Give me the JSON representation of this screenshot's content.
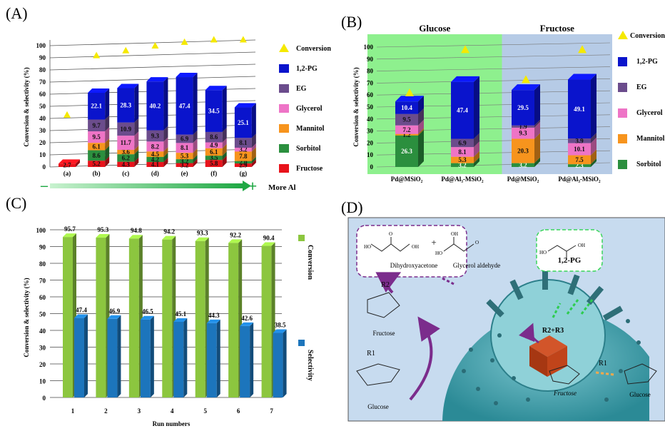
{
  "chart_data": [
    {
      "panel": "(A)",
      "type": "bar",
      "stacked": true,
      "categories": [
        "(a)",
        "(b)",
        "(c)",
        "(d)",
        "(e)",
        "(f)",
        "(g)"
      ],
      "ylabel": "Conversion & selectivity (%)",
      "ylim": [
        0,
        100
      ],
      "yticks": [
        0,
        10,
        20,
        30,
        40,
        50,
        60,
        70,
        80,
        90,
        100
      ],
      "axis_note": "More Al",
      "axis_minus": "–",
      "axis_plus": "+",
      "legend_placement": "right",
      "series": [
        {
          "name": "Fructose",
          "color": "#e8131b",
          "values": [
            2.7,
            5.2,
            4.3,
            4.1,
            3.2,
            5.8,
            2.9
          ]
        },
        {
          "name": "Sorbitol",
          "color": "#2b8f3e",
          "values": [
            0,
            8.6,
            6.2,
            4.2,
            3.2,
            3.5,
            2.0
          ]
        },
        {
          "name": "Mannitol",
          "color": "#f7941d",
          "values": [
            0,
            6.1,
            3.6,
            4.5,
            5.3,
            6.1,
            7.8
          ]
        },
        {
          "name": "Glycerol",
          "color": "#ee74c6",
          "values": [
            0,
            9.5,
            11.7,
            8.2,
            8.1,
            4.9,
            3.2
          ]
        },
        {
          "name": "EG",
          "color": "#6b4c8c",
          "values": [
            0,
            9.7,
            10.9,
            9.3,
            6.9,
            8.6,
            8.1
          ]
        },
        {
          "name": "1,2-PG",
          "color": "#0a14cc",
          "values": [
            0,
            22.1,
            28.3,
            40.2,
            47.4,
            34.5,
            25.1
          ]
        }
      ],
      "labels": [
        [
          "2.7",
          "",
          "",
          "",
          "",
          ""
        ],
        [
          "5.2",
          "8.6",
          "6.1",
          "9.5",
          "9.7",
          "22.1"
        ],
        [
          "4.3",
          "6.2",
          "3.6",
          "11.7",
          "10.9",
          "28.3"
        ],
        [
          "4.1",
          "4.2",
          "4.5",
          "8.2",
          "9.3",
          "40.2"
        ],
        [
          "3.2",
          "3.2",
          "5.3",
          "8.1",
          "6.9",
          "47.4"
        ],
        [
          "5.8",
          "3.5",
          "6.1",
          "4.9",
          "8.6",
          "34.5"
        ],
        [
          "2.9",
          "2.0",
          "7.8",
          "3.2",
          "8.1",
          "25.1"
        ]
      ],
      "conversion": {
        "name": "Conversion",
        "color": "#f5e900",
        "values": [
          43,
          92,
          96,
          100,
          103,
          105,
          105
        ]
      }
    },
    {
      "panel": "(B)",
      "type": "bar",
      "stacked": true,
      "groups": [
        "Glucose",
        "Fructose"
      ],
      "categories": [
        "Pd@MSiO₂",
        "Pd@Al₃-MSiO₂",
        "Pd@MSiO₂",
        "Pd@Al₃-MSiO₂"
      ],
      "ylabel": "Conversion & selectivity (%)",
      "ylim": [
        0,
        100
      ],
      "yticks": [
        0,
        10,
        20,
        30,
        40,
        50,
        60,
        70,
        80,
        90,
        100
      ],
      "legend_placement": "right",
      "group_colors": [
        "#8ef08e",
        "#b6cbe6"
      ],
      "series": [
        {
          "name": "Sorbitol",
          "color": "#2b8f3e",
          "values": [
            26.3,
            3.2,
            3.2,
            2.3
          ]
        },
        {
          "name": "Mannitol",
          "color": "#f7941d",
          "values": [
            1.2,
            5.3,
            20.3,
            7.5
          ]
        },
        {
          "name": "Glycerol",
          "color": "#ee74c6",
          "values": [
            7.2,
            8.1,
            9.3,
            10.1
          ]
        },
        {
          "name": "EG",
          "color": "#6b4c8c",
          "values": [
            9.5,
            6.9,
            1.9,
            3.9
          ]
        },
        {
          "name": "1,2-PG",
          "color": "#0a14cc",
          "values": [
            10.4,
            47.4,
            29.5,
            49.1
          ]
        }
      ],
      "labels": [
        [
          "26.3",
          "1.2",
          "7.2",
          "9.5",
          "10.4"
        ],
        [
          "3.2",
          "5.3",
          "8.1",
          "6.9",
          "47.4"
        ],
        [
          "3.2",
          "20.3",
          "9.3",
          "1.9",
          "29.5"
        ],
        [
          "2.3",
          "7.5",
          "10.1",
          "3.9",
          "49.1"
        ]
      ],
      "conversion": {
        "name": "Conversion",
        "color": "#f5e900",
        "values": [
          62,
          98,
          73,
          98
        ]
      }
    },
    {
      "panel": "(C)",
      "type": "bar",
      "categories": [
        "1",
        "2",
        "3",
        "4",
        "5",
        "6",
        "7"
      ],
      "xlabel": "Run numbers",
      "ylabel": "Conversion & selectivity (%)",
      "ylim": [
        0,
        100
      ],
      "yticks": [
        0,
        10,
        20,
        30,
        40,
        50,
        60,
        70,
        80,
        90,
        100
      ],
      "legend_placement": "right",
      "series": [
        {
          "name": "Conversion",
          "color": "#8cc63f",
          "values": [
            95.7,
            95.3,
            94.8,
            94.2,
            93.3,
            92.2,
            90.4
          ]
        },
        {
          "name": "Selectivity",
          "color": "#1c75bc",
          "values": [
            47.4,
            46.9,
            46.5,
            45.1,
            44.3,
            42.6,
            38.5
          ]
        }
      ]
    }
  ],
  "diagram": {
    "panel": "(D)",
    "dihydroxyacetone": "Dihydroxyacetone",
    "plus": "+",
    "glycerol_aldehyde": "Glycerol aldehyde",
    "product": "1,2-PG",
    "r1_left": "R1",
    "r2": "R2",
    "r2r3": "R2+R3",
    "r1_right": "R1",
    "fructose_left": "Fructose",
    "glucose_left": "Glucose",
    "fructose_inner": "Fructose",
    "glucose_right": "Glucose",
    "ho": "HO",
    "oh": "OH",
    "o": "O"
  }
}
